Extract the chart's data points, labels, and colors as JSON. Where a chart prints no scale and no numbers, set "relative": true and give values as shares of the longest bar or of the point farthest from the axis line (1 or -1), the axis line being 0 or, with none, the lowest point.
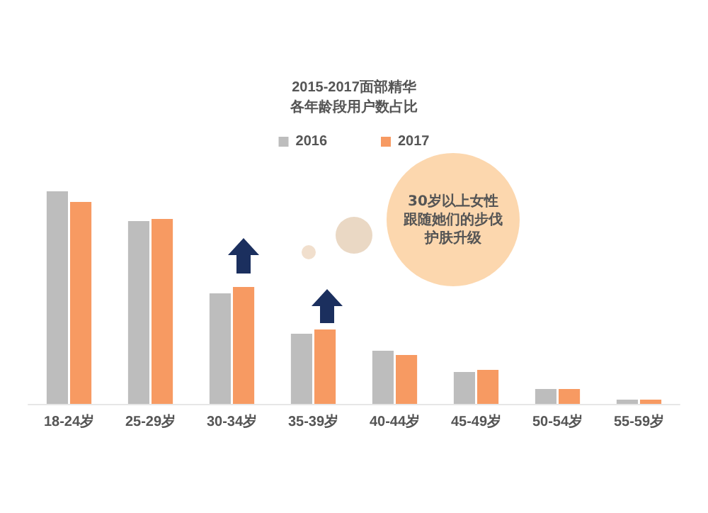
{
  "chart_data": {
    "type": "bar",
    "relative": true,
    "title": "2015-2017面部精华",
    "subtitle": "各年龄段用户数占比",
    "categories": [
      "18-24岁",
      "25-29岁",
      "30-34岁",
      "35-39岁",
      "40-44岁",
      "45-49岁",
      "50-54岁",
      "55-59岁"
    ],
    "series": [
      {
        "name": "2016",
        "color": "#bdbdbd",
        "values": [
          1,
          0.86,
          0.52,
          0.33,
          0.25,
          0.15,
          0.07,
          0.02
        ]
      },
      {
        "name": "2017",
        "color": "#f79a62",
        "values": [
          0.95,
          0.87,
          0.55,
          0.35,
          0.23,
          0.16,
          0.07,
          0.02
        ]
      }
    ],
    "legend": "top",
    "annotations": [
      "30岁以上女性",
      "跟随她们的步伐",
      "护肤升级"
    ]
  }
}
